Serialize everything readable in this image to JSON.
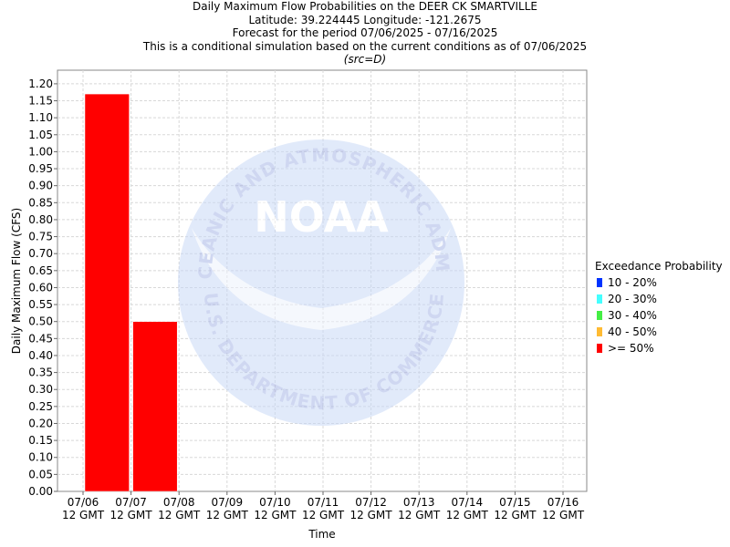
{
  "title_lines": {
    "line1": "Daily Maximum Flow Probabilities on the DEER CK SMARTVILLE",
    "line2": "Latitude: 39.224445 Longitude: -121.2675",
    "line3": "Forecast for the period 07/06/2025 - 07/16/2025",
    "line4": "This is a conditional simulation based on the current conditions as of 07/06/2025",
    "line5": "(src=D)"
  },
  "watermark": {
    "logo_text": "NOAA",
    "arc_top": "NATIONAL OCEANIC AND ATMOSPHERIC ADMINISTRATION",
    "arc_bottom": "U.S. DEPARTMENT OF COMMERCE"
  },
  "legend": {
    "title": "Exceedance Probability",
    "items": [
      {
        "label": "10 - 20%",
        "color": "#0033ff"
      },
      {
        "label": "20 - 30%",
        "color": "#44ffff"
      },
      {
        "label": "30 - 40%",
        "color": "#44ee44"
      },
      {
        "label": "40 - 50%",
        "color": "#ffbb33"
      },
      {
        "label": ">= 50%",
        "color": "#ff0000"
      }
    ]
  },
  "chart_data": {
    "type": "bar",
    "xlabel": "Time",
    "ylabel": "Daily Maximum Flow (CFS)",
    "ylim": [
      0,
      1.24
    ],
    "yticks": [
      0.0,
      0.05,
      0.1,
      0.15,
      0.2,
      0.25,
      0.3,
      0.35,
      0.4,
      0.45,
      0.5,
      0.55,
      0.6,
      0.65,
      0.7,
      0.75,
      0.8,
      0.85,
      0.9,
      0.95,
      1.0,
      1.05,
      1.1,
      1.15,
      1.2
    ],
    "ytick_labels": [
      "0.00",
      "0.05",
      "0.10",
      "0.15",
      "0.20",
      "0.25",
      "0.30",
      "0.35",
      "0.40",
      "0.45",
      "0.50",
      "0.55",
      "0.60",
      "0.65",
      "0.70",
      "0.75",
      "0.80",
      "0.85",
      "0.90",
      "0.95",
      "1.00",
      "1.05",
      "1.10",
      "1.15",
      "1.20"
    ],
    "x_ticks": [
      {
        "date": "07/06",
        "time": "12 GMT"
      },
      {
        "date": "07/07",
        "time": "12 GMT"
      },
      {
        "date": "07/08",
        "time": "12 GMT"
      },
      {
        "date": "07/09",
        "time": "12 GMT"
      },
      {
        "date": "07/10",
        "time": "12 GMT"
      },
      {
        "date": "07/11",
        "time": "12 GMT"
      },
      {
        "date": "07/12",
        "time": "12 GMT"
      },
      {
        "date": "07/13",
        "time": "12 GMT"
      },
      {
        "date": "07/14",
        "time": "12 GMT"
      },
      {
        "date": "07/15",
        "time": "12 GMT"
      },
      {
        "date": "07/16",
        "time": "12 GMT"
      }
    ],
    "grid": true,
    "legend_placement": "right",
    "bars": [
      {
        "start": "07/06 12 GMT",
        "end": "07/07 12 GMT",
        "value": 1.17,
        "series": ">= 50%",
        "color": "#ff0000"
      },
      {
        "start": "07/07 12 GMT",
        "end": "07/08 12 GMT",
        "value": 0.5,
        "series": ">= 50%",
        "color": "#ff0000"
      }
    ]
  }
}
